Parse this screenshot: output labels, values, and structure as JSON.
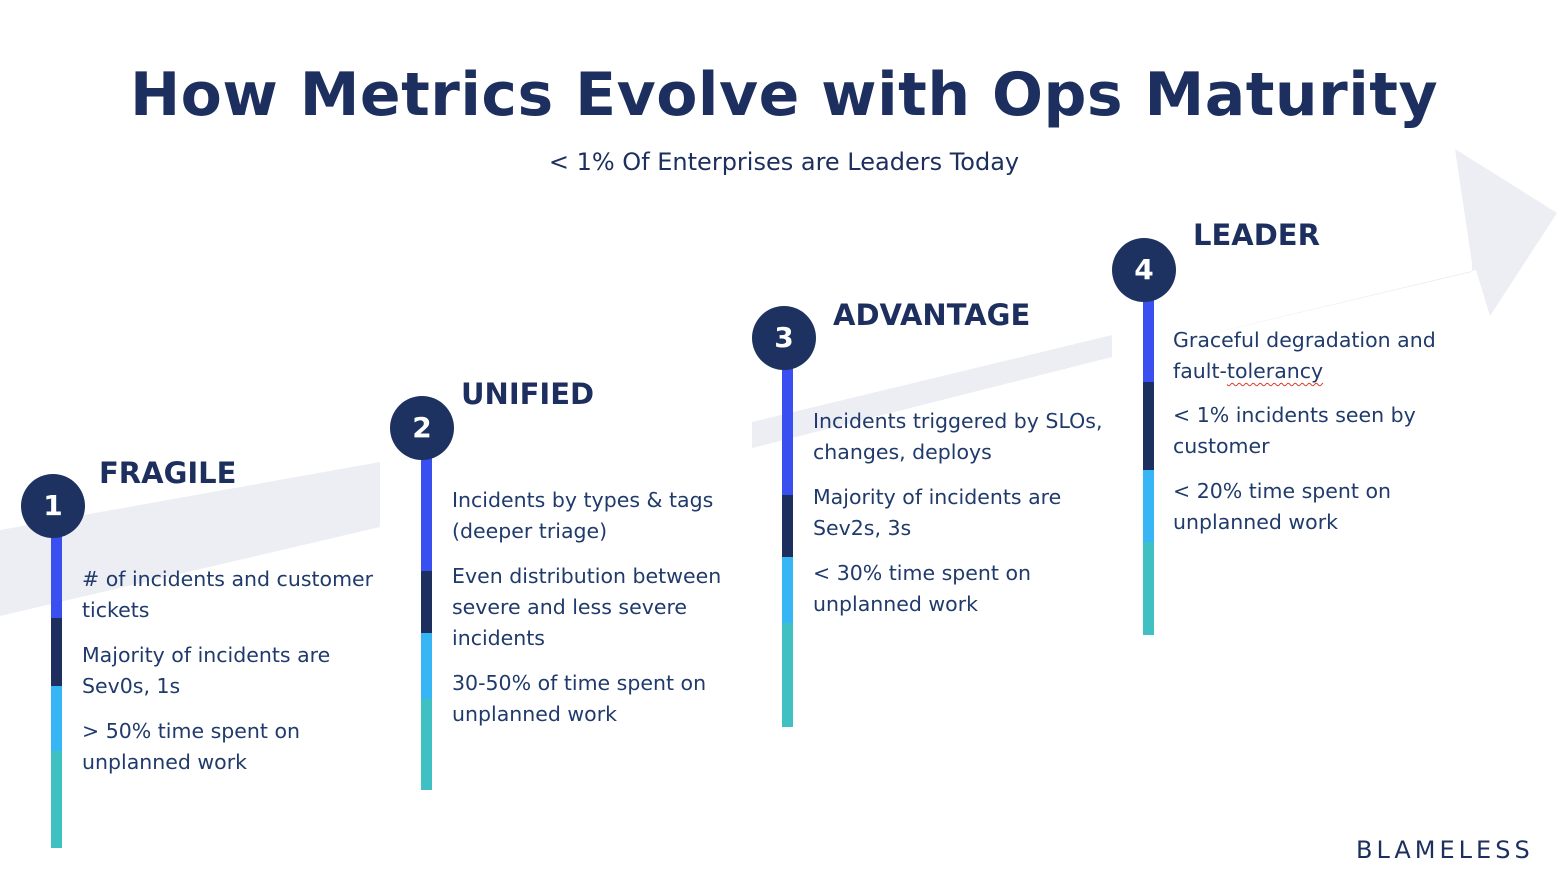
{
  "title": "How Metrics Evolve with Ops Maturity",
  "subtitle": "< 1% Of Enterprises are Leaders Today",
  "colors": {
    "navy": "#1d3261",
    "segment_blue": "#3a4ff0",
    "segment_navy": "#1d2f5e",
    "segment_sky": "#36b6f5",
    "segment_teal": "#3fc1c3",
    "arrow_background": "#eceef3"
  },
  "stages": [
    {
      "number": "1",
      "name": "FRAGILE",
      "metrics": [
        "# of incidents and customer tickets",
        "Majority of incidents are Sev0s, 1s",
        "> 50% time spent on unplanned work"
      ]
    },
    {
      "number": "2",
      "name": "UNIFIED",
      "metrics": [
        "Incidents by types & tags (deeper triage)",
        "Even distribution between severe and less severe incidents",
        "30-50% of time spent on unplanned work"
      ]
    },
    {
      "number": "3",
      "name": "ADVANTAGE",
      "metrics": [
        "Incidents triggered by SLOs, changes, deploys",
        "Majority of incidents are Sev2s, 3s",
        "< 30% time spent on unplanned work"
      ]
    },
    {
      "number": "4",
      "name": "LEADER",
      "metrics": [
        "Graceful degradation and fault-",
        "tolerancy",
        "< 1% incidents seen by customer",
        "< 20% time spent on unplanned work"
      ]
    }
  ],
  "logo": "BLAMELESS"
}
